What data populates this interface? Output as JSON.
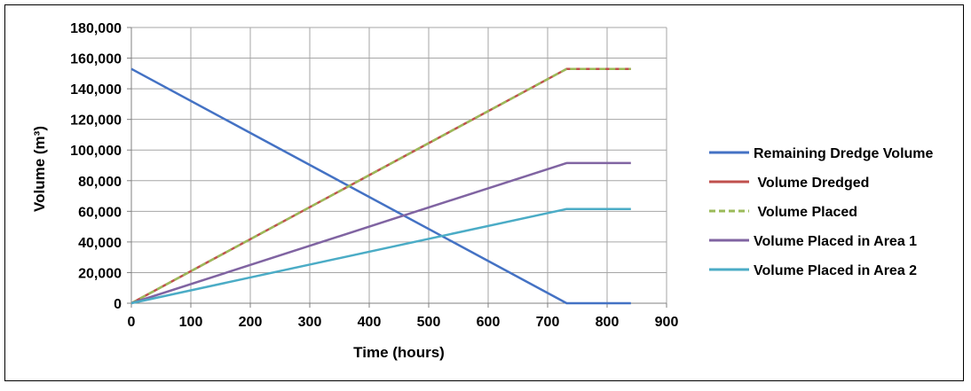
{
  "chart_data": {
    "type": "line",
    "title": "",
    "xlabel": "Time (hours)",
    "ylabel": "Volume (m³)",
    "xlim": [
      0,
      900
    ],
    "ylim": [
      0,
      180000
    ],
    "x_ticks": [
      0,
      100,
      200,
      300,
      400,
      500,
      600,
      700,
      800,
      900
    ],
    "x_tick_labels": [
      "0",
      "100",
      "200",
      "300",
      "400",
      "500",
      "600",
      "700",
      "800",
      "900"
    ],
    "y_ticks": [
      0,
      20000,
      40000,
      60000,
      80000,
      100000,
      120000,
      140000,
      160000,
      180000
    ],
    "y_tick_labels": [
      "0",
      "20,000",
      "40,000",
      "60,000",
      "80,000",
      "100,000",
      "120,000",
      "140,000",
      "160,000",
      "180,000"
    ],
    "grid": true,
    "legend_position": "right",
    "series": [
      {
        "name": "Remaining Dredge Volume",
        "color": "#4472C4",
        "dash": "solid",
        "points": [
          [
            0,
            153000
          ],
          [
            732,
            0
          ],
          [
            840,
            0
          ]
        ]
      },
      {
        "name": " Volume Dredged",
        "color": "#C0504D",
        "dash": "solid",
        "points": [
          [
            0,
            0
          ],
          [
            732,
            153000
          ],
          [
            840,
            153000
          ]
        ]
      },
      {
        "name": " Volume Placed",
        "color": "#9BBB59",
        "dash": "dashed",
        "points": [
          [
            0,
            0
          ],
          [
            732,
            153000
          ],
          [
            840,
            153000
          ]
        ]
      },
      {
        "name": "Volume Placed in Area 1",
        "color": "#8064A2",
        "dash": "solid",
        "points": [
          [
            0,
            0
          ],
          [
            732,
            91500
          ],
          [
            840,
            91500
          ]
        ]
      },
      {
        "name": "Volume Placed in Area 2",
        "color": "#4BACC6",
        "dash": "solid",
        "points": [
          [
            0,
            0
          ],
          [
            732,
            61500
          ],
          [
            840,
            61500
          ]
        ]
      }
    ]
  }
}
